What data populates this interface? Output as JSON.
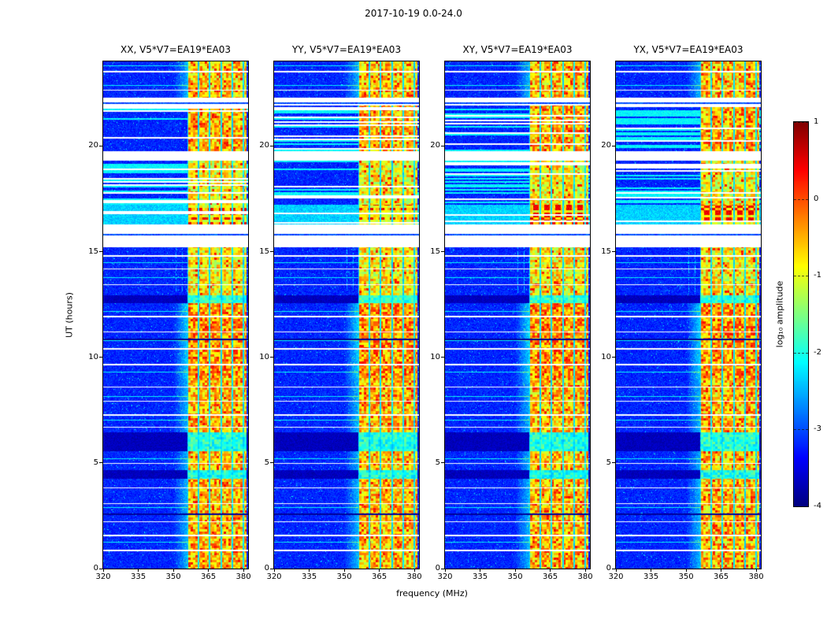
{
  "figure": {
    "title": "2017-10-19 0.0-24.0",
    "xlabel": "frequency (MHz)",
    "ylabel": "UT (hours)",
    "colorbar_label": "log₁₀ amplitude"
  },
  "chart_data": {
    "type": "heatmap",
    "title": "2017-10-19 0.0-24.0",
    "panels": [
      "XX, V5*V7=EA19*EA03",
      "YY, V5*V7=EA19*EA03",
      "XY, V5*V7=EA19*EA03",
      "YX, V5*V7=EA19*EA03"
    ],
    "xlabel": "frequency (MHz)",
    "ylabel": "UT (hours)",
    "x_range_mhz": [
      320,
      382
    ],
    "y_range_hours": [
      0,
      24
    ],
    "x_ticks": [
      320,
      335,
      350,
      365,
      380
    ],
    "y_ticks": [
      0,
      5,
      10,
      15,
      20
    ],
    "colormap": "jet",
    "value_range": [
      -4,
      1
    ],
    "colorbar_ticks": [
      1,
      0,
      -1,
      -2,
      -3,
      -4
    ],
    "colorbar_label": "log₁₀ amplitude",
    "background_level": -3.2,
    "rfi_band_mhz": [
      356,
      381.3
    ],
    "time_segments": [
      {
        "t0": 0.0,
        "t1": 4.25,
        "bg": "noise",
        "band": 0.85
      },
      {
        "t0": 4.25,
        "t1": 4.65,
        "bg": "dark",
        "band": 0.6
      },
      {
        "t0": 4.65,
        "t1": 5.55,
        "bg": "noise",
        "band": 0.8
      },
      {
        "t0": 5.55,
        "t1": 6.45,
        "bg": "dark",
        "band": 0.65
      },
      {
        "t0": 6.45,
        "t1": 9.0,
        "bg": "noise",
        "band": 0.85
      },
      {
        "t0": 9.0,
        "t1": 12.55,
        "bg": "noise",
        "band": 1.0
      },
      {
        "t0": 12.55,
        "t1": 12.95,
        "bg": "dark",
        "band": 0.7
      },
      {
        "t0": 12.95,
        "t1": 15.2,
        "bg": "noise",
        "band": 0.65
      },
      {
        "t0": 15.2,
        "t1": 16.3,
        "bg": "white",
        "band": 0
      },
      {
        "t0": 16.3,
        "t1": 17.2,
        "bg": "cyan",
        "band": 1.2
      },
      {
        "t0": 17.2,
        "t1": 19.3,
        "bg": "stripes",
        "band": 0.6
      },
      {
        "t0": 19.3,
        "t1": 19.75,
        "bg": "white",
        "band": 0
      },
      {
        "t0": 19.75,
        "t1": 21.9,
        "bg": "stripes",
        "band": 0.9
      },
      {
        "t0": 21.9,
        "t1": 22.3,
        "bg": "white",
        "band": 0
      },
      {
        "t0": 22.3,
        "t1": 24.01,
        "bg": "noise",
        "band": 0.8
      }
    ],
    "white_lines_hours": [
      0.9,
      1.6,
      2.25,
      3.1,
      3.85,
      5.0,
      6.7,
      7.3,
      7.95,
      8.6,
      9.7,
      10.45,
      11.2,
      11.95,
      13.45,
      14.2,
      14.85,
      22.65,
      23.55
    ],
    "cyan_lines_hours": [
      1.25,
      2.9,
      5.2,
      7.05,
      8.15,
      9.3,
      10.8,
      12.2,
      13.8,
      14.5,
      22.9,
      23.8
    ],
    "black_lines_hours": [
      2.6,
      10.9
    ],
    "gap_embedded_lines_hours": [
      15.85,
      22.05
    ],
    "dotted_columns": {
      "freqs_mhz": [
        351.2,
        353.8
      ],
      "t_range": [
        13.0,
        15.2
      ]
    }
  }
}
